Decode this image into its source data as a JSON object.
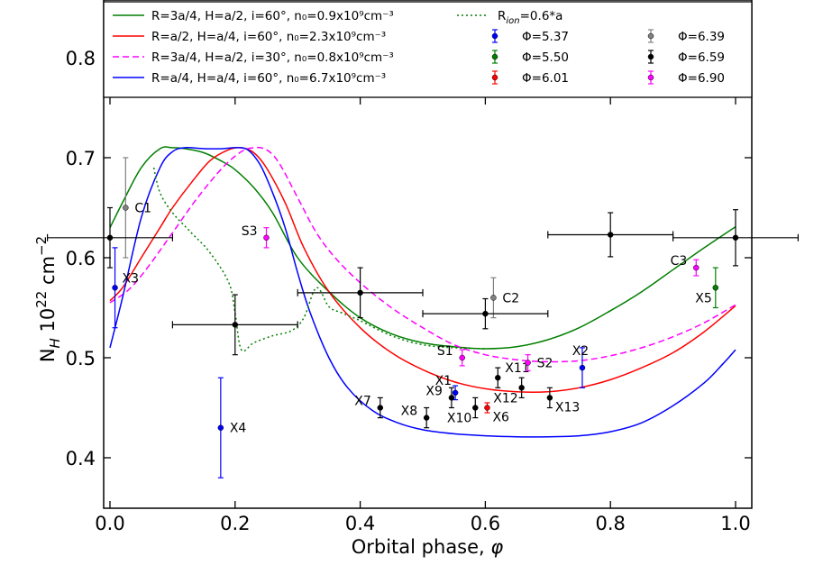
{
  "chart_data": {
    "type": "scatter",
    "title": "",
    "xlabel": "Orbital phase, φ",
    "ylabel": "N_H 10^22 cm^-2",
    "xlim": [
      -0.01,
      1.01
    ],
    "ylim": [
      0.35,
      0.88
    ],
    "xticks": [
      0.0,
      0.2,
      0.4,
      0.6,
      0.8,
      1.0
    ],
    "xtick_labels": [
      "0.0",
      "0.2",
      "0.4",
      "0.6",
      "0.8",
      "1.0"
    ],
    "yticks": [
      0.4,
      0.5,
      0.6,
      0.7,
      0.8
    ],
    "ytick_labels": [
      "0.4",
      "0.5",
      "0.6",
      "0.7",
      "0.8"
    ],
    "legend_location": "top",
    "ylabel_main": "N",
    "ylabel_sub": "H",
    "ylabel_mid": " 10",
    "ylabel_exp": "22",
    "ylabel_unit": " cm",
    "ylabel_unit_exp": "−2",
    "xlabel_main": "Orbital phase, ",
    "xlabel_phi": "φ",
    "colors": {
      "green": "#007f00",
      "red": "#ff0000",
      "magenta": "#ff00ff",
      "blue": "#0000ff",
      "black": "#000000",
      "gray": "#808080"
    },
    "model_curves": [
      {
        "name": "R=3a/4, H=a/2, i=60°, n0=0.9x10^9cm^-3",
        "label": "R=3a/4, H=a/2, i=60°, n₀=0.9x10⁹cm⁻³",
        "color": "green",
        "style": "solid",
        "x": [
          0.0,
          0.02,
          0.05,
          0.08,
          0.1,
          0.12,
          0.15,
          0.18,
          0.2,
          0.23,
          0.26,
          0.3,
          0.35,
          0.4,
          0.45,
          0.5,
          0.55,
          0.6,
          0.65,
          0.7,
          0.75,
          0.8,
          0.85,
          0.9,
          0.95,
          1.0
        ],
        "y": [
          0.63,
          0.655,
          0.69,
          0.709,
          0.71,
          0.709,
          0.705,
          0.696,
          0.688,
          0.67,
          0.645,
          0.6,
          0.566,
          0.54,
          0.524,
          0.515,
          0.511,
          0.509,
          0.511,
          0.518,
          0.53,
          0.547,
          0.566,
          0.588,
          0.61,
          0.631
        ]
      },
      {
        "name": "R=a/2, H=a/4, i=60°, n0=2.3x10^9cm^-3",
        "label": "R=a/2, H=a/4, i=60°,  n₀=2.3x10⁹cm⁻³",
        "color": "red",
        "style": "solid",
        "x": [
          0.0,
          0.02,
          0.05,
          0.08,
          0.1,
          0.13,
          0.16,
          0.19,
          0.21,
          0.23,
          0.25,
          0.28,
          0.31,
          0.35,
          0.4,
          0.45,
          0.5,
          0.55,
          0.6,
          0.65,
          0.7,
          0.75,
          0.8,
          0.85,
          0.9,
          0.95,
          1.0
        ],
        "y": [
          0.557,
          0.57,
          0.6,
          0.63,
          0.65,
          0.675,
          0.697,
          0.708,
          0.71,
          0.705,
          0.69,
          0.655,
          0.61,
          0.566,
          0.53,
          0.505,
          0.488,
          0.476,
          0.469,
          0.466,
          0.466,
          0.47,
          0.478,
          0.49,
          0.505,
          0.526,
          0.552
        ]
      },
      {
        "name": "R=3a/4, H=a/2, i=30°, n0=0.8x10^9cm^-3",
        "label": "R=3a/4, H=a/2, i=30°,  n₀=0.8x10⁹cm⁻³",
        "color": "magenta",
        "style": "dashed",
        "x": [
          0.0,
          0.03,
          0.06,
          0.1,
          0.14,
          0.18,
          0.21,
          0.23,
          0.25,
          0.27,
          0.3,
          0.33,
          0.36,
          0.4,
          0.45,
          0.5,
          0.55,
          0.6,
          0.65,
          0.7,
          0.75,
          0.8,
          0.85,
          0.9,
          0.95,
          1.0
        ],
        "y": [
          0.555,
          0.568,
          0.59,
          0.625,
          0.66,
          0.69,
          0.706,
          0.71,
          0.708,
          0.695,
          0.66,
          0.625,
          0.6,
          0.575,
          0.55,
          0.53,
          0.513,
          0.503,
          0.498,
          0.496,
          0.497,
          0.502,
          0.51,
          0.521,
          0.535,
          0.553
        ]
      },
      {
        "name": "R=a/4, H=a/4, i=60°, n0=6.7x10^9cm^-3",
        "label": "R=a/4, H=a/4, i=60°, n₀=6.7x10⁹cm⁻³",
        "color": "blue",
        "style": "solid",
        "x": [
          0.0,
          0.02,
          0.05,
          0.08,
          0.1,
          0.12,
          0.15,
          0.18,
          0.2,
          0.22,
          0.24,
          0.26,
          0.28,
          0.3,
          0.32,
          0.35,
          0.38,
          0.42,
          0.46,
          0.5,
          0.55,
          0.6,
          0.65,
          0.7,
          0.75,
          0.8,
          0.85,
          0.9,
          0.95,
          0.98,
          1.0
        ],
        "y": [
          0.51,
          0.56,
          0.64,
          0.69,
          0.706,
          0.71,
          0.709,
          0.709,
          0.71,
          0.708,
          0.693,
          0.665,
          0.63,
          0.585,
          0.545,
          0.5,
          0.47,
          0.447,
          0.435,
          0.428,
          0.424,
          0.422,
          0.421,
          0.421,
          0.422,
          0.426,
          0.435,
          0.452,
          0.475,
          0.494,
          0.508
        ]
      },
      {
        "name": "R_ion=0.6*a",
        "label": "R",
        "label_sub": "ion",
        "label_tail": "=0.6*a",
        "color": "green",
        "style": "dotted",
        "x": [
          0.07,
          0.08,
          0.1,
          0.13,
          0.16,
          0.19,
          0.2,
          0.21,
          0.23,
          0.26,
          0.29,
          0.31,
          0.33,
          0.35,
          0.37,
          0.4,
          0.45,
          0.5,
          0.55,
          0.6
        ],
        "y": [
          0.69,
          0.665,
          0.645,
          0.625,
          0.605,
          0.575,
          0.545,
          0.508,
          0.515,
          0.522,
          0.527,
          0.54,
          0.57,
          0.551,
          0.545,
          0.537,
          0.522,
          0.513,
          0.51,
          0.509
        ]
      }
    ],
    "observation_groups": [
      {
        "label": "Φ=5.37",
        "color": "blue"
      },
      {
        "label": "Φ=5.50",
        "color": "green"
      },
      {
        "label": "Φ=6.01",
        "color": "red"
      },
      {
        "label": "Φ=6.39",
        "color": "gray"
      },
      {
        "label": "Φ=6.59",
        "color": "black"
      },
      {
        "label": "Φ=6.90",
        "color": "magenta"
      }
    ],
    "points": [
      {
        "label": "X3",
        "x": 0.008,
        "y": 0.57,
        "yerr": 0.04,
        "xerr": 0.0,
        "color": "blue",
        "label_pos": "above-right"
      },
      {
        "label": "X4",
        "x": 0.177,
        "y": 0.43,
        "yerr": 0.05,
        "xerr": 0.0,
        "color": "blue",
        "label_pos": "right"
      },
      {
        "label": "X1",
        "x": 0.552,
        "y": 0.465,
        "yerr": 0.007,
        "xerr": 0.0,
        "color": "blue",
        "label_pos": "above-left"
      },
      {
        "label": "X2",
        "x": 0.755,
        "y": 0.49,
        "yerr": 0.02,
        "xerr": 0.0,
        "color": "blue",
        "label_pos": "above"
      },
      {
        "label": "X5",
        "x": 0.968,
        "y": 0.57,
        "yerr": 0.02,
        "xerr": 0.0,
        "color": "green",
        "label_pos": "below-left"
      },
      {
        "label": "X6",
        "x": 0.603,
        "y": 0.45,
        "yerr": 0.005,
        "xerr": 0.0,
        "color": "red",
        "label_pos": "below-right"
      },
      {
        "label": "C1",
        "x": 0.025,
        "y": 0.65,
        "yerr": 0.05,
        "xerr": 0.0,
        "color": "gray",
        "label_pos": "right"
      },
      {
        "label": "C2",
        "x": 0.613,
        "y": 0.56,
        "yerr": 0.02,
        "xerr": 0.0,
        "color": "gray",
        "label_pos": "right"
      },
      {
        "label": "",
        "x": 0.0,
        "y": 0.62,
        "yerr": 0.03,
        "xerr": 0.1,
        "color": "black",
        "label_pos": "none"
      },
      {
        "label": "",
        "x": 0.2,
        "y": 0.533,
        "yerr": 0.03,
        "xerr": 0.1,
        "color": "black",
        "label_pos": "none"
      },
      {
        "label": "",
        "x": 0.4,
        "y": 0.565,
        "yerr": 0.025,
        "xerr": 0.1,
        "color": "black",
        "label_pos": "none"
      },
      {
        "label": "",
        "x": 0.6,
        "y": 0.544,
        "yerr": 0.015,
        "xerr": 0.1,
        "color": "black",
        "label_pos": "none"
      },
      {
        "label": "",
        "x": 0.8,
        "y": 0.623,
        "yerr": 0.022,
        "xerr": 0.1,
        "color": "black",
        "label_pos": "none"
      },
      {
        "label": "",
        "x": 1.0,
        "y": 0.62,
        "yerr": 0.028,
        "xerr": 0.1,
        "color": "black",
        "label_pos": "none"
      },
      {
        "label": "X7",
        "x": 0.432,
        "y": 0.45,
        "yerr": 0.01,
        "xerr": 0.0,
        "color": "black",
        "label_pos": "left"
      },
      {
        "label": "X8",
        "x": 0.506,
        "y": 0.44,
        "yerr": 0.01,
        "xerr": 0.0,
        "color": "black",
        "label_pos": "left"
      },
      {
        "label": "X9",
        "x": 0.546,
        "y": 0.46,
        "yerr": 0.01,
        "xerr": 0.0,
        "color": "black",
        "label_pos": "left"
      },
      {
        "label": "X10",
        "x": 0.584,
        "y": 0.45,
        "yerr": 0.01,
        "xerr": 0.0,
        "color": "black",
        "label_pos": "below-left"
      },
      {
        "label": "X11",
        "x": 0.62,
        "y": 0.48,
        "yerr": 0.01,
        "xerr": 0.0,
        "color": "black",
        "label_pos": "above-right"
      },
      {
        "label": "X12",
        "x": 0.658,
        "y": 0.47,
        "yerr": 0.01,
        "xerr": 0.0,
        "color": "black",
        "label_pos": "below-left"
      },
      {
        "label": "X13",
        "x": 0.703,
        "y": 0.46,
        "yerr": 0.01,
        "xerr": 0.0,
        "color": "black",
        "label_pos": "below-right"
      },
      {
        "label": "S1",
        "x": 0.563,
        "y": 0.5,
        "yerr": 0.008,
        "xerr": 0.0,
        "color": "magenta",
        "label_pos": "left"
      },
      {
        "label": "S2",
        "x": 0.668,
        "y": 0.495,
        "yerr": 0.008,
        "xerr": 0.0,
        "color": "magenta",
        "label_pos": "right"
      },
      {
        "label": "S3",
        "x": 0.25,
        "y": 0.62,
        "yerr": 0.01,
        "xerr": 0.0,
        "color": "magenta",
        "label_pos": "left"
      },
      {
        "label": "C3",
        "x": 0.937,
        "y": 0.59,
        "yerr": 0.008,
        "xerr": 0.0,
        "color": "magenta",
        "label_pos": "left"
      }
    ]
  }
}
